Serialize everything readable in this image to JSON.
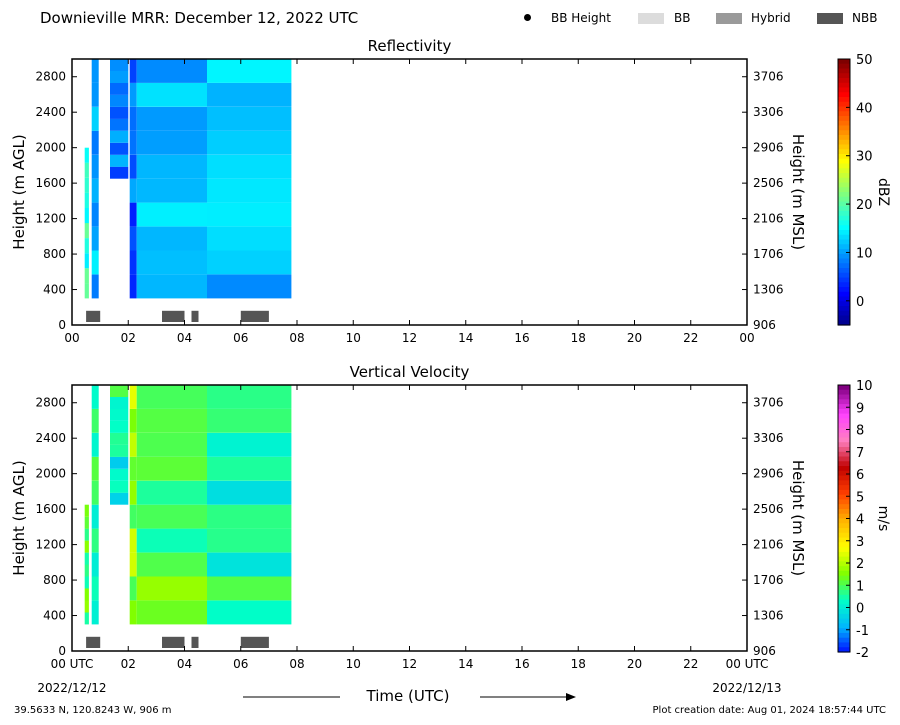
{
  "header": {
    "title": "Downieville MRR:  December 12, 2022 UTC"
  },
  "legend": [
    {
      "label": "BB Height",
      "type": "dot",
      "color": "#000000"
    },
    {
      "label": "BB",
      "type": "rect",
      "color": "#dcdcdc"
    },
    {
      "label": "Hybrid",
      "type": "rect",
      "color": "#9a9a9a"
    },
    {
      "label": "NBB",
      "type": "rect",
      "color": "#555555"
    }
  ],
  "footer": {
    "location": "39.5633 N, 120.8243 W, 906 m",
    "creation": "Plot creation date: Aug 01, 2024 18:57:44 UTC",
    "time_label": "Time (UTC)",
    "date_start": "2022/12/12",
    "date_end": "2022/12/13"
  },
  "chart_data": [
    {
      "type": "heatmap",
      "title": "Reflectivity",
      "xlabel": "",
      "ylabel": "Height (m AGL)",
      "ylabel_right": "Height (m MSL)",
      "colorbar_label": "dBZ",
      "xlim": [
        0,
        24
      ],
      "x_ticks": [
        "00",
        "02",
        "04",
        "06",
        "08",
        "10",
        "12",
        "14",
        "16",
        "18",
        "20",
        "22",
        "00"
      ],
      "ylim": [
        0,
        3000
      ],
      "y_ticks": [
        0,
        400,
        800,
        1200,
        1600,
        2000,
        2400,
        2800
      ],
      "y_ticks_right": [
        906,
        1306,
        1706,
        2106,
        2506,
        2906,
        3306,
        3706
      ],
      "colorbar_ticks": [
        "50",
        "40",
        "30",
        "20",
        "10",
        "0"
      ],
      "colorbar_range": [
        -5,
        50
      ],
      "colorscale": [
        "#00007f",
        "#0000ff",
        "#007fff",
        "#00ffff",
        "#7fff7f",
        "#ffff00",
        "#ff7f00",
        "#ff0000",
        "#7f0000"
      ],
      "echo_bands": [
        {
          "t0": 0.45,
          "t1": 0.6,
          "h0": 300,
          "h1": 2000,
          "level": 0.42
        },
        {
          "t0": 0.7,
          "t1": 0.95,
          "h0": 300,
          "h1": 3000,
          "level": 0.3
        },
        {
          "t0": 1.35,
          "t1": 2.0,
          "h0": 1650,
          "h1": 3000,
          "level": 0.25
        },
        {
          "t0": 2.05,
          "t1": 2.3,
          "h0": 300,
          "h1": 3000,
          "level": 0.22
        },
        {
          "t0": 2.3,
          "t1": 4.8,
          "h0": 300,
          "h1": 3000,
          "level": 0.32
        },
        {
          "t0": 4.8,
          "t1": 7.8,
          "h0": 300,
          "h1": 3000,
          "level": 0.3
        }
      ],
      "bb_markers": [
        {
          "t0": 0.5,
          "t1": 1.0,
          "class": "NBB"
        },
        {
          "t0": 3.2,
          "t1": 4.0,
          "class": "NBB"
        },
        {
          "t0": 4.25,
          "t1": 4.5,
          "class": "NBB"
        },
        {
          "t0": 6.0,
          "t1": 7.0,
          "class": "NBB"
        }
      ]
    },
    {
      "type": "heatmap",
      "title": "Vertical Velocity",
      "xlabel": "Time (UTC)",
      "ylabel": "Height (m AGL)",
      "ylabel_right": "Height (m MSL)",
      "colorbar_label": "m/s",
      "xlim": [
        0,
        24
      ],
      "x_ticks": [
        "00 UTC",
        "02",
        "04",
        "06",
        "08",
        "10",
        "12",
        "14",
        "16",
        "18",
        "20",
        "22",
        "00 UTC"
      ],
      "ylim": [
        0,
        3000
      ],
      "y_ticks": [
        0,
        400,
        800,
        1200,
        1600,
        2000,
        2400,
        2800
      ],
      "y_ticks_right": [
        906,
        1306,
        1706,
        2106,
        2506,
        2906,
        3306,
        3706
      ],
      "colorbar_ticks": [
        "10",
        "9",
        "8",
        "7",
        "6",
        "5",
        "4",
        "3",
        "2",
        "1",
        "0",
        "-1",
        "-2"
      ],
      "colorbar_range": [
        -2,
        10
      ],
      "colorscale": [
        "#0000ff",
        "#00b4ff",
        "#00ffc8",
        "#7fff00",
        "#ffff00",
        "#ffb400",
        "#ff4000",
        "#c00000",
        "#ff80c0",
        "#ff40ff",
        "#800080"
      ],
      "echo_bands": [
        {
          "t0": 0.45,
          "t1": 0.6,
          "h0": 300,
          "h1": 1650,
          "level": 0.27
        },
        {
          "t0": 0.7,
          "t1": 0.95,
          "h0": 300,
          "h1": 3000,
          "level": 0.22
        },
        {
          "t0": 1.35,
          "t1": 2.0,
          "h0": 1650,
          "h1": 3000,
          "level": 0.2
        },
        {
          "t0": 2.05,
          "t1": 2.3,
          "h0": 300,
          "h1": 3000,
          "level": 0.32
        },
        {
          "t0": 2.3,
          "t1": 4.8,
          "h0": 300,
          "h1": 3000,
          "level": 0.27
        },
        {
          "t0": 4.8,
          "t1": 7.8,
          "h0": 300,
          "h1": 3000,
          "level": 0.22
        }
      ],
      "bb_markers": [
        {
          "t0": 0.5,
          "t1": 1.0,
          "class": "NBB"
        },
        {
          "t0": 3.2,
          "t1": 4.0,
          "class": "NBB"
        },
        {
          "t0": 4.25,
          "t1": 4.5,
          "class": "NBB"
        },
        {
          "t0": 6.0,
          "t1": 7.0,
          "class": "NBB"
        }
      ]
    }
  ]
}
